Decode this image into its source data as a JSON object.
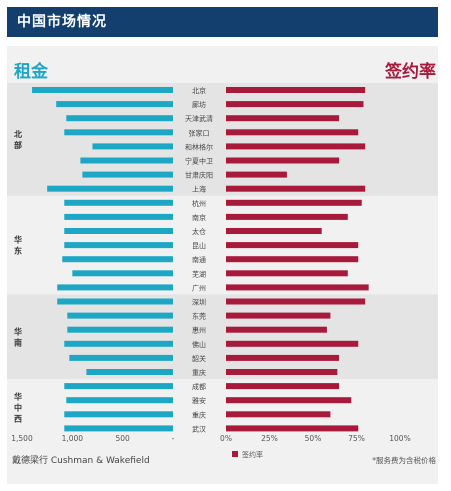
{
  "page": {
    "title": "中国市场情况"
  },
  "footer": {
    "source": "戴德梁行 Cushman & Wakefield",
    "note": "*服务费为含税价格"
  },
  "chart_data": {
    "type": "bar",
    "layout": "back-to-back",
    "left": {
      "title": "租金",
      "color": "#1ea7c5",
      "xlim": [
        0,
        1500
      ],
      "ticks": [
        "1,500",
        "1,000",
        "500",
        "-"
      ],
      "tick_values": [
        1500,
        1000,
        500,
        0
      ]
    },
    "right": {
      "title": "签约率",
      "color": "#a81a3c",
      "xlim": [
        0,
        1
      ],
      "ticks": [
        "0%",
        "25%",
        "50%",
        "75%",
        "100%"
      ],
      "tick_values": [
        0,
        0.25,
        0.5,
        0.75,
        1
      ],
      "legend": "签约率"
    },
    "regions": [
      {
        "label": "北部",
        "lines": [
          "北",
          "部"
        ],
        "start": 0,
        "end": 7,
        "shade": true
      },
      {
        "label": "华东",
        "lines": [
          "华",
          "东"
        ],
        "start": 8,
        "end": 14,
        "shade": false
      },
      {
        "label": "华南",
        "lines": [
          "华",
          "南"
        ],
        "start": 15,
        "end": 20,
        "shade": true
      },
      {
        "label": "华中西",
        "lines": [
          "华",
          "中",
          "西"
        ],
        "start": 21,
        "end": 24,
        "shade": false
      }
    ],
    "categories": [
      "北京",
      "廊坊",
      "天津武清",
      "张家口",
      "和林格尔",
      "宁夏中卫",
      "甘肃庆阳",
      "上海",
      "杭州",
      "南京",
      "太仓",
      "昆山",
      "南通",
      "芜湖",
      "广州",
      "深圳",
      "东莞",
      "惠州",
      "佛山",
      "韶关",
      "重庆",
      "成都",
      "雅安",
      "重庆",
      "武汉"
    ],
    "rent": [
      1400,
      1160,
      1060,
      1080,
      800,
      920,
      900,
      1250,
      1080,
      1080,
      1080,
      1080,
      1100,
      1000,
      1150,
      1150,
      1050,
      1050,
      1080,
      1030,
      860,
      1080,
      1060,
      1080,
      1080
    ],
    "signing_rate": [
      0.8,
      0.79,
      0.65,
      0.76,
      0.8,
      0.65,
      0.35,
      0.8,
      0.78,
      0.7,
      0.55,
      0.76,
      0.76,
      0.7,
      0.82,
      0.8,
      0.6,
      0.58,
      0.76,
      0.65,
      0.64,
      0.65,
      0.72,
      0.6,
      0.76
    ]
  }
}
